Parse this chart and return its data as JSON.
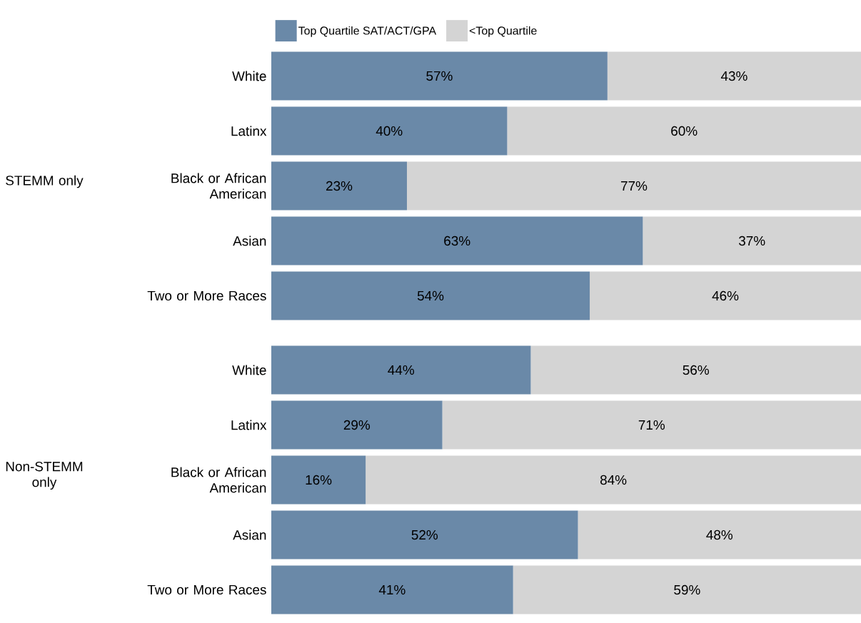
{
  "chart_data": [
    {
      "type": "bar",
      "orientation": "horizontal",
      "stacked": true,
      "title": "STEMM only",
      "categories": [
        "White",
        "Latinx",
        "Black or African American",
        "Asian",
        "Two or More Races"
      ],
      "tick_labels": "y",
      "legend": "top",
      "series": [
        {
          "name": "Top Quartile SAT/ACT/GPA",
          "color": "#6a89a8",
          "values": [
            57,
            40,
            23,
            63,
            54
          ],
          "value_labels": [
            "57%",
            "40%",
            "23%",
            "63%",
            "54%"
          ]
        },
        {
          "name": "<Top Quartile",
          "color": "#d4d4d4",
          "values": [
            43,
            60,
            77,
            37,
            46
          ],
          "value_labels": [
            "43%",
            "60%",
            "77%",
            "37%",
            "46%"
          ]
        }
      ]
    },
    {
      "type": "bar",
      "orientation": "horizontal",
      "stacked": true,
      "title": "Non-STEMM only",
      "categories": [
        "White",
        "Latinx",
        "Black or African American",
        "Asian",
        "Two or More Races"
      ],
      "tick_labels": "y",
      "series": [
        {
          "color": "#6a89a8",
          "values": [
            44,
            29,
            16,
            52,
            41
          ],
          "value_labels": [
            "44%",
            "29%",
            "16%",
            "52%",
            "41%"
          ]
        },
        {
          "color": "#d4d4d4",
          "values": [
            56,
            71,
            84,
            48,
            59
          ],
          "value_labels": [
            "56%",
            "71%",
            "84%",
            "48%",
            "59%"
          ]
        }
      ]
    }
  ]
}
